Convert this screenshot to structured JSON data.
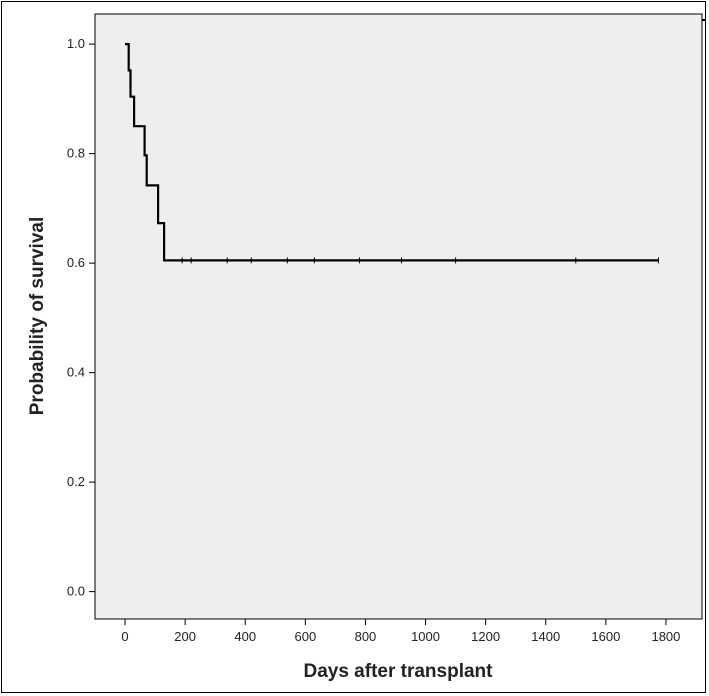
{
  "chart_data": {
    "type": "line",
    "step": true,
    "title": "",
    "xlabel": "Days after transplant",
    "ylabel": "Probability of survival",
    "xlim": [
      -100,
      1920
    ],
    "ylim": [
      -0.05,
      1.055
    ],
    "xticks": [
      0,
      200,
      400,
      600,
      800,
      1000,
      1200,
      1400,
      1600,
      1800
    ],
    "yticks": [
      0.0,
      0.2,
      0.4,
      0.6,
      0.8,
      1.0
    ],
    "ytick_labels": [
      "0.0",
      "0.2",
      "0.4",
      "0.6",
      "0.8",
      "1.0"
    ],
    "grid": false,
    "legend": "none",
    "colors": {
      "plot_background": "#eeeeee",
      "line": "#000000"
    },
    "series": [
      {
        "x": [
          0,
          12,
          18,
          30,
          65,
          72,
          110,
          130,
          1775
        ],
        "y": [
          1.0,
          0.952,
          0.904,
          0.85,
          0.797,
          0.742,
          0.673,
          0.605,
          0.605
        ]
      }
    ],
    "censored": [
      {
        "x": 190,
        "y": 0.605
      },
      {
        "x": 220,
        "y": 0.605
      },
      {
        "x": 340,
        "y": 0.605
      },
      {
        "x": 420,
        "y": 0.605
      },
      {
        "x": 540,
        "y": 0.605
      },
      {
        "x": 630,
        "y": 0.605
      },
      {
        "x": 780,
        "y": 0.605
      },
      {
        "x": 920,
        "y": 0.605
      },
      {
        "x": 1100,
        "y": 0.605
      },
      {
        "x": 1500,
        "y": 0.605
      },
      {
        "x": 1775,
        "y": 0.605
      }
    ]
  }
}
